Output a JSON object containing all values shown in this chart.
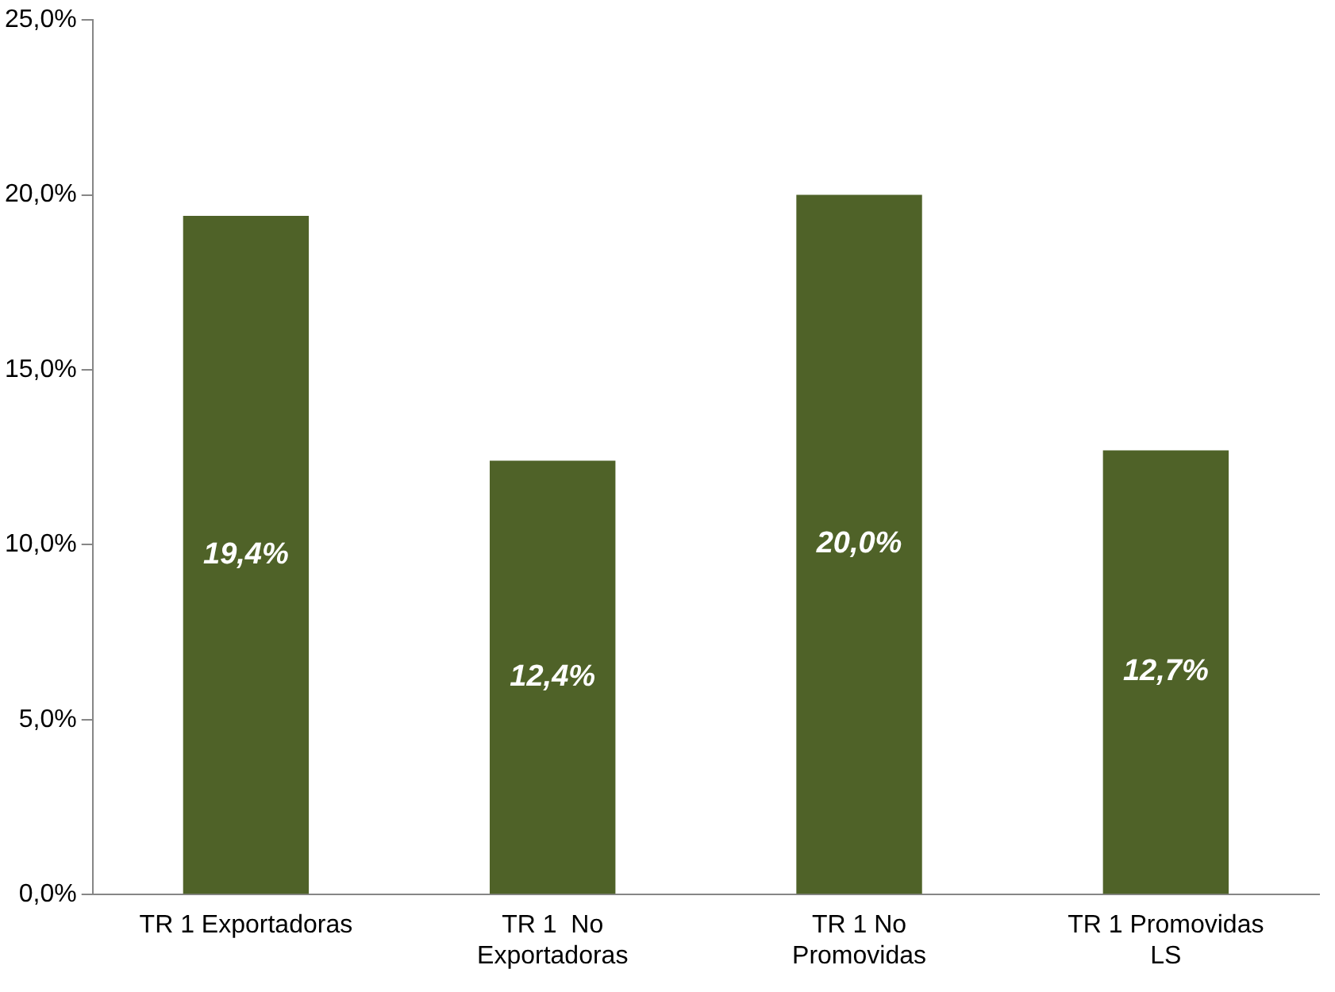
{
  "chart_data": {
    "type": "bar",
    "categories": [
      "TR 1 Exportadoras",
      "TR 1  No\nExportadoras",
      "TR 1 No\nPromovidas",
      "TR 1 Promovidas\nLS"
    ],
    "values": [
      19.4,
      12.4,
      20.0,
      12.7
    ],
    "value_labels": [
      "19,4%",
      "12,4%",
      "20,0%",
      "12,7%"
    ],
    "color": "#4f6228",
    "ylim": [
      0,
      25
    ],
    "yticks": [
      {
        "value": 0,
        "label": "0,0%"
      },
      {
        "value": 5,
        "label": "5,0%"
      },
      {
        "value": 10,
        "label": "10,0%"
      },
      {
        "value": 15,
        "label": "15,0%"
      },
      {
        "value": 20,
        "label": "20,0%"
      },
      {
        "value": 25,
        "label": "25,0%"
      }
    ],
    "grid": false,
    "legend": false
  }
}
